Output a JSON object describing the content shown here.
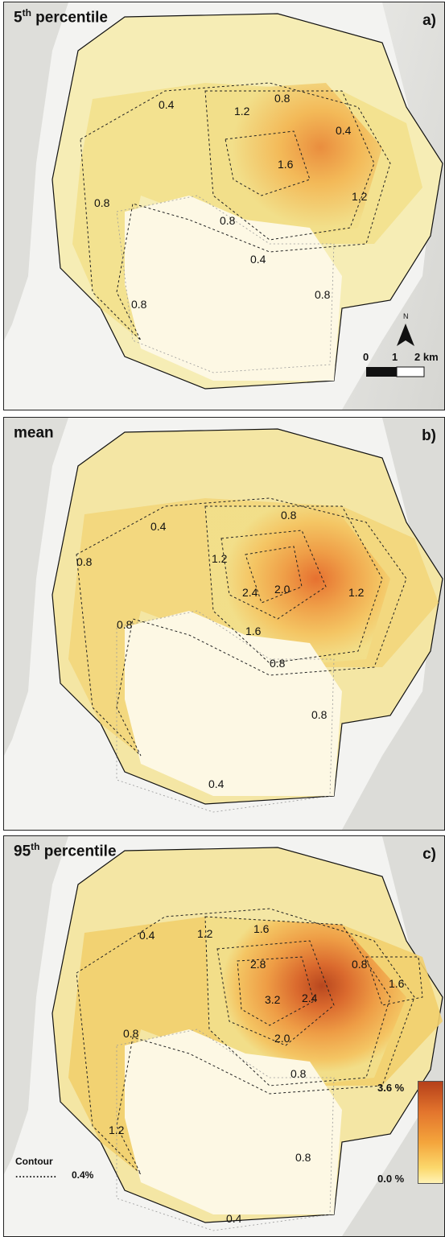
{
  "panels": [
    {
      "id": "a",
      "title_main": "5",
      "title_sup": "th",
      "title_rest": " percentile",
      "letter": "a)",
      "contour_labels": [
        "0.4",
        "1.2",
        "0.8",
        "0.4",
        "1.6",
        "0.8",
        "1.2",
        "0.8",
        "0.4",
        "0.8",
        "0.8"
      ]
    },
    {
      "id": "b",
      "title_main": "mean",
      "title_sup": "",
      "title_rest": "",
      "letter": "b)",
      "contour_labels": [
        "0.4",
        "0.8",
        "1.2",
        "0.8",
        "2.4",
        "2.0",
        "1.2",
        "0.8",
        "1.6",
        "0.8",
        "0.8",
        "0.4"
      ]
    },
    {
      "id": "c",
      "title_main": "95",
      "title_sup": "th",
      "title_rest": " percentile",
      "letter": "c)",
      "contour_labels": [
        "0.4",
        "1.2",
        "1.6",
        "2.8",
        "0.8",
        "1.6",
        "3.2",
        "2.4",
        "0.8",
        "2.0",
        "0.8",
        "1.2",
        "0.8",
        "0.4"
      ]
    }
  ],
  "scale_bar": {
    "north_label": "N",
    "tick_0": "0",
    "tick_1": "1",
    "tick_2": "2 km"
  },
  "legend": {
    "max_label": "3.6 %",
    "min_label": "0.0 %",
    "contour_title": "Contour",
    "contour_symbol": "............",
    "contour_value": "0.4%",
    "color_high": "#b5401a",
    "color_low": "#fff2b5"
  }
}
